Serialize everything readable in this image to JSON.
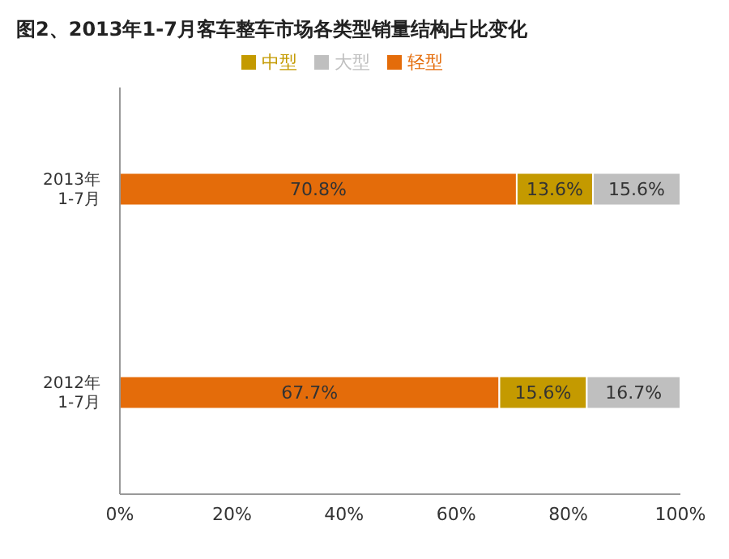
{
  "chart_data": {
    "type": "bar",
    "orientation": "horizontal",
    "stacked": true,
    "title": "图2、2013年1-7月客车整车市场各类型销量结构占比变化",
    "categories": [
      "2013年\n1-7月",
      "2012年\n1-7月"
    ],
    "series": [
      {
        "name": "轻型",
        "color": "#e46c0a",
        "values": [
          70.8,
          67.7
        ],
        "value_labels": [
          "70.8%",
          "67.7%"
        ]
      },
      {
        "name": "中型",
        "color": "#c49a00",
        "values": [
          13.6,
          15.6
        ],
        "value_labels": [
          "13.6%",
          "15.6%"
        ]
      },
      {
        "name": "大型",
        "color": "#bfbfbf",
        "values": [
          15.6,
          16.7
        ],
        "value_labels": [
          "15.6%",
          "16.7%"
        ]
      }
    ],
    "xlim": [
      0,
      100
    ],
    "xticks": [
      {
        "value": 0,
        "label": "0%"
      },
      {
        "value": 20,
        "label": "20%"
      },
      {
        "value": 40,
        "label": "40%"
      },
      {
        "value": 60,
        "label": "60%"
      },
      {
        "value": 80,
        "label": "80%"
      },
      {
        "value": 100,
        "label": "100%"
      }
    ],
    "legend": "top",
    "grid": false
  }
}
